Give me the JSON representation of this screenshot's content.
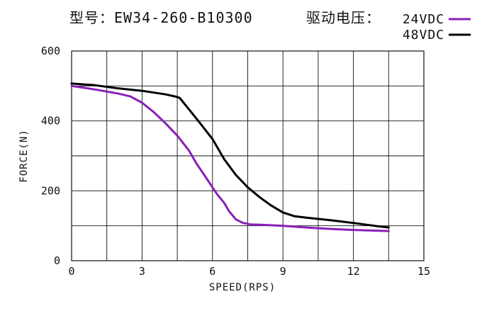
{
  "chart_data": {
    "type": "line",
    "title": "型号：EW34-260-B10300",
    "xlabel": "SPEED(RPS)",
    "ylabel": "FORCE(N)",
    "xlim": [
      0,
      15
    ],
    "ylim": [
      0,
      600
    ],
    "xticks": [
      "0",
      "3",
      "6",
      "9",
      "12",
      "15"
    ],
    "yticks": [
      "0",
      "200",
      "400",
      "600"
    ],
    "grid": true,
    "legend_title": "驱动电压：",
    "legend_position": "top-right",
    "series": [
      {
        "name": "24VDC",
        "color": "#8a1fb8",
        "x": [
          0,
          1,
          2,
          2.5,
          3,
          3.5,
          4,
          4.5,
          5,
          5.3,
          5.7,
          6,
          6.2,
          6.5,
          6.7,
          7,
          7.3,
          7.6,
          8,
          9,
          10,
          11,
          12,
          13,
          13.5
        ],
        "y": [
          500,
          490,
          478,
          470,
          452,
          425,
          393,
          358,
          315,
          280,
          240,
          210,
          190,
          165,
          142,
          118,
          108,
          104,
          103,
          100,
          95,
          91,
          88,
          86,
          85
        ]
      },
      {
        "name": "48VDC",
        "color": "#000000",
        "x": [
          0,
          1,
          2,
          3,
          3.5,
          4,
          4.4,
          4.6,
          5,
          5.5,
          6,
          6.5,
          7,
          7.5,
          8,
          8.5,
          9,
          9.5,
          10,
          11,
          12,
          13,
          13.5
        ],
        "y": [
          507,
          502,
          493,
          486,
          481,
          476,
          470,
          466,
          433,
          391,
          348,
          290,
          245,
          210,
          182,
          158,
          138,
          127,
          123,
          116,
          108,
          99,
          95
        ]
      }
    ]
  }
}
